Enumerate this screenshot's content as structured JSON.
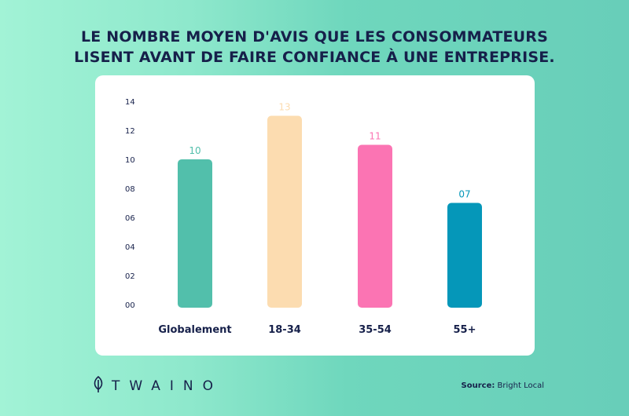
{
  "title": {
    "line1": "LE NOMBRE MOYEN D'AVIS QUE LES CONSOMMATEURS",
    "line2": "LISENT AVANT DE FAIRE CONFIANCE À UNE ENTREPRISE."
  },
  "brand": {
    "name": "TWAINO",
    "icon": "leaf-icon"
  },
  "source": {
    "label": "Source:",
    "value": "Bright Local"
  },
  "colors": {
    "navy": "#16204a",
    "teal": "#52bfab",
    "peach": "#fcdcb0",
    "pink": "#fb74b3",
    "blue": "#0597b9"
  },
  "chart_data": {
    "type": "bar",
    "title": "LE NOMBRE MOYEN D'AVIS QUE LES CONSOMMATEURS LISENT AVANT DE FAIRE CONFIANCE À UNE ENTREPRISE.",
    "categories": [
      "Globalement",
      "18-34",
      "35-54",
      "55+"
    ],
    "values": [
      10,
      13,
      11,
      7
    ],
    "data_labels": [
      "10",
      "13",
      "11",
      "07"
    ],
    "bar_colors": [
      "#52bfab",
      "#fcdcb0",
      "#fb74b3",
      "#0597b9"
    ],
    "label_colors": [
      "#52bfab",
      "#fcdcb0",
      "#fb74b3",
      "#0597b9"
    ],
    "ylim": [
      0,
      14
    ],
    "yticks": [
      "00",
      "02",
      "04",
      "06",
      "08",
      "10",
      "12",
      "14"
    ],
    "xlabel": "",
    "ylabel": "",
    "grid": false,
    "legend": "none"
  }
}
